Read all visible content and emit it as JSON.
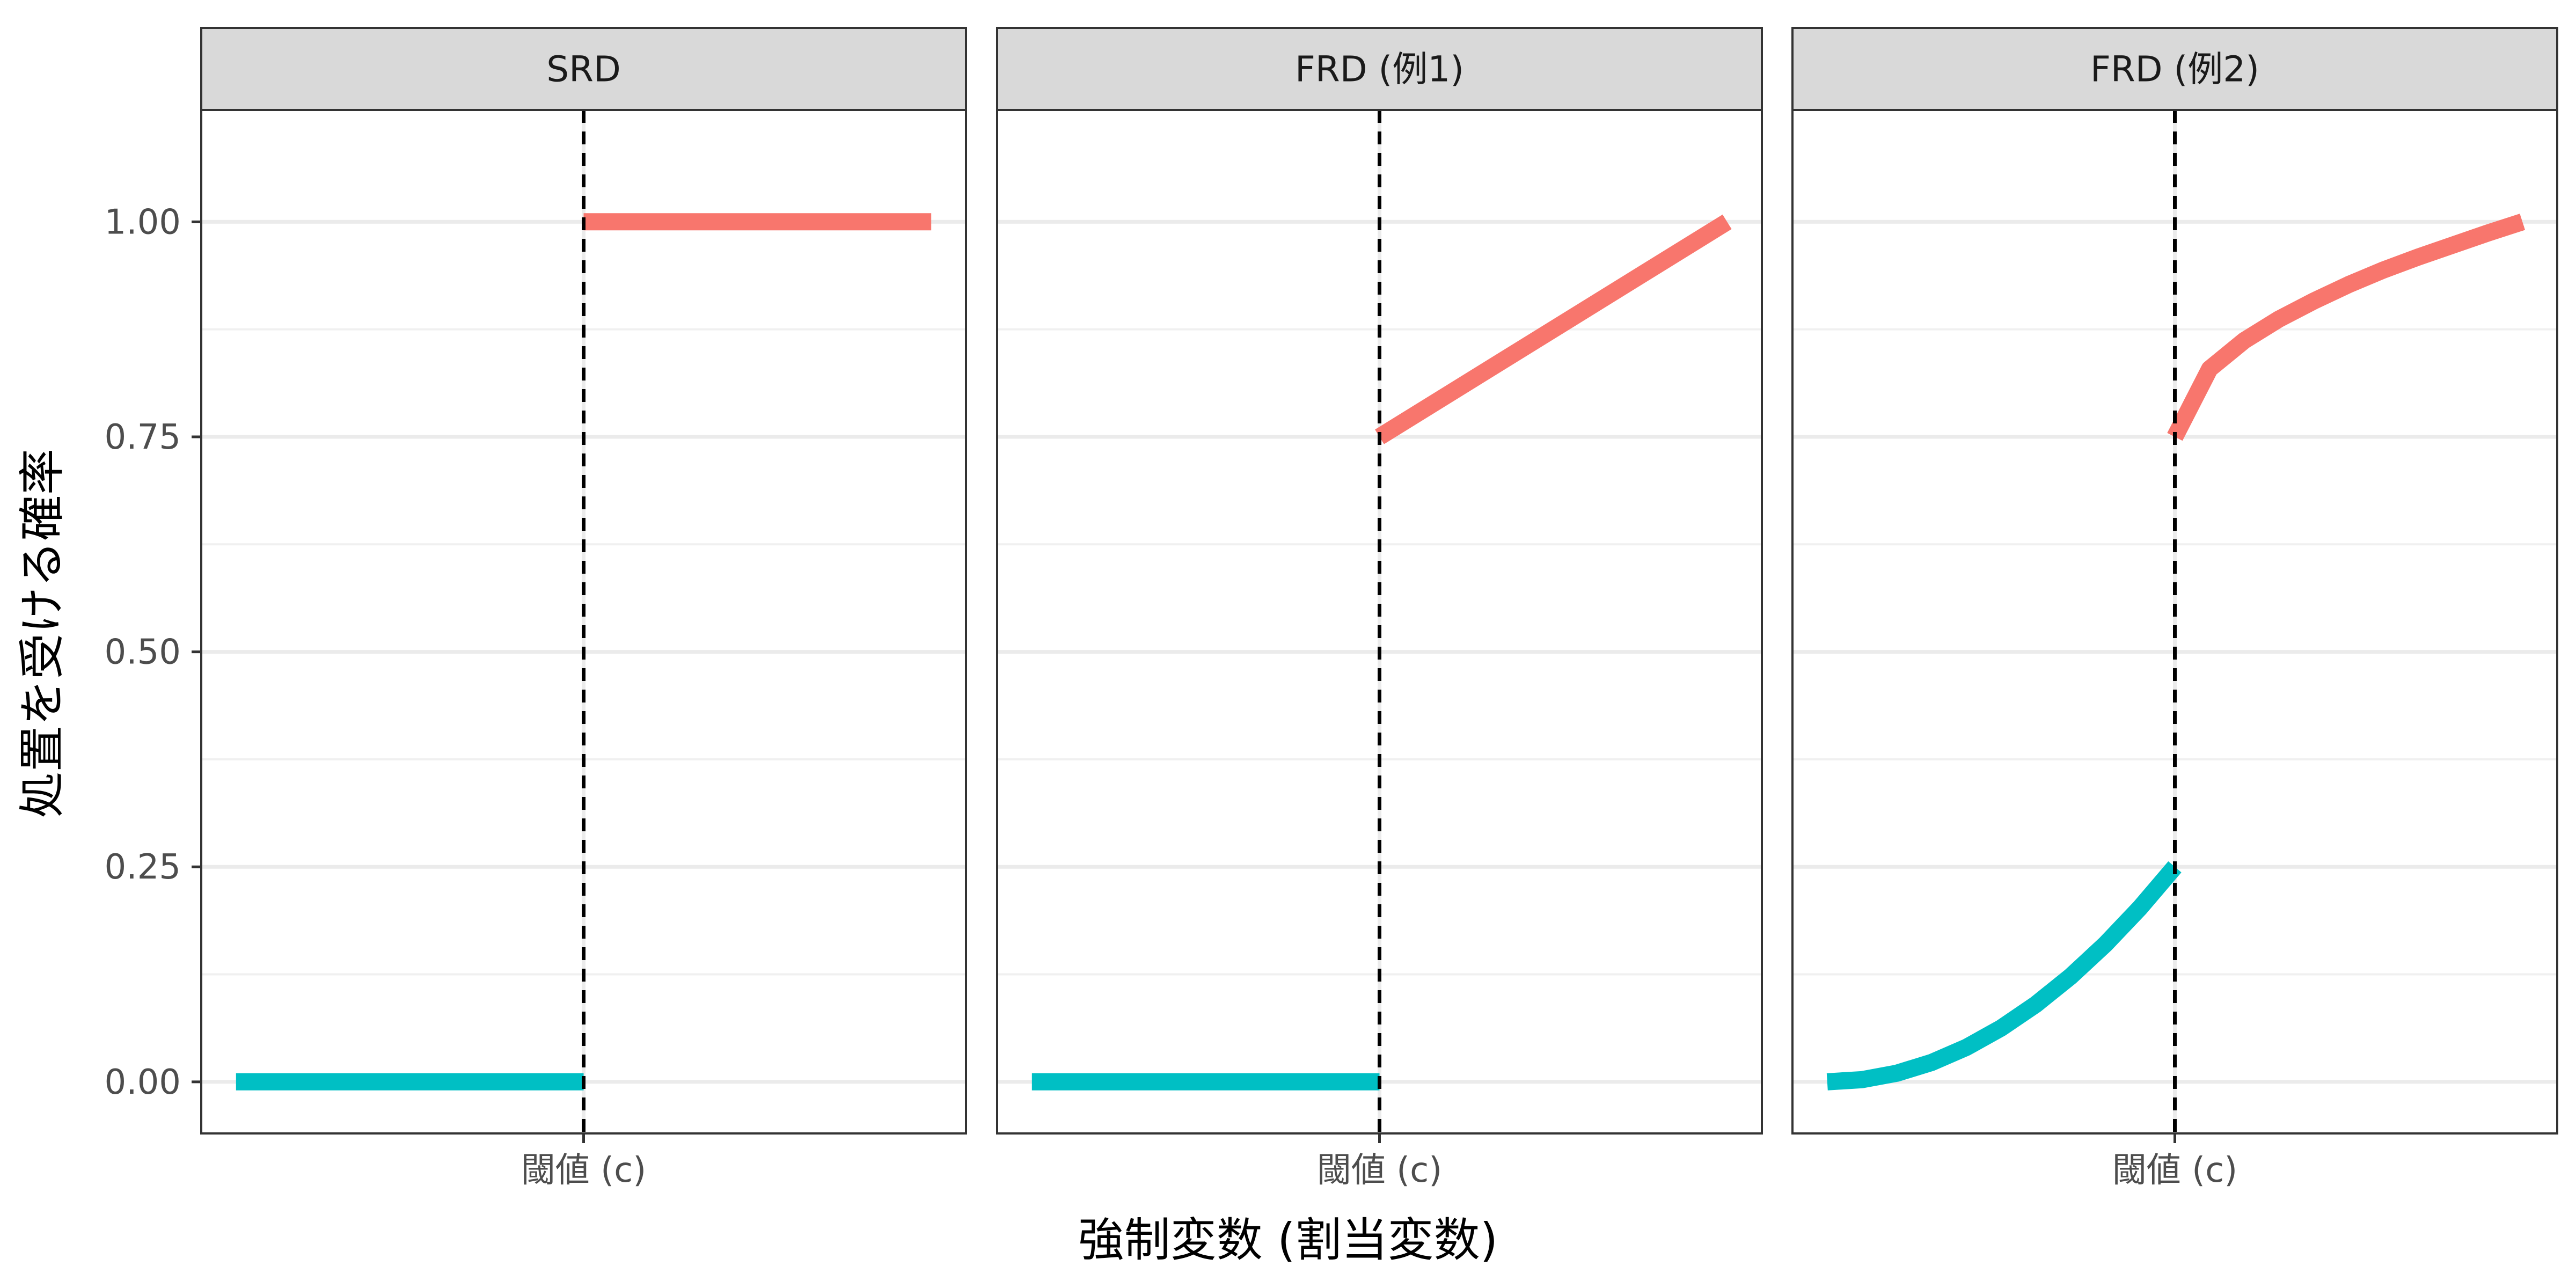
{
  "chart_data": {
    "type": "line",
    "layout": "facets",
    "xlabel": "強制変数 (割当変数)",
    "ylabel": "処置を受ける確率",
    "ylim": [
      -0.06,
      1.13
    ],
    "xlim": [
      -0.05,
      1.05
    ],
    "y_ticks": [
      0,
      0.25,
      0.5,
      0.75,
      1.0
    ],
    "y_tick_labels": [
      "0.00",
      "0.25",
      "0.50",
      "0.75",
      "1.00"
    ],
    "threshold": 0.5,
    "x_tick_label": "閾値 (c)",
    "grid": true,
    "legend": "none",
    "colors": {
      "below": "#00BFC4",
      "above": "#F8766D",
      "threshold_line": "#000000"
    },
    "panels": [
      {
        "title": "SRD",
        "series": [
          {
            "group": "below",
            "x": [
              0,
              0.5
            ],
            "y": [
              0,
              0
            ]
          },
          {
            "group": "above",
            "x": [
              0.5,
              1.0
            ],
            "y": [
              1.0,
              1.0
            ]
          }
        ]
      },
      {
        "title": "FRD (例1)",
        "series": [
          {
            "group": "below",
            "x": [
              0,
              0.5
            ],
            "y": [
              0,
              0
            ]
          },
          {
            "group": "above",
            "x": [
              0.5,
              1.0
            ],
            "y": [
              0.75,
              1.0
            ]
          }
        ]
      },
      {
        "title": "FRD (例2)",
        "series": [
          {
            "group": "below",
            "x": [
              0,
              0.05,
              0.1,
              0.15,
              0.2,
              0.25,
              0.3,
              0.35,
              0.4,
              0.45,
              0.5
            ],
            "y": [
              0,
              0.0025,
              0.01,
              0.0225,
              0.04,
              0.0625,
              0.09,
              0.1225,
              0.16,
              0.2025,
              0.25
            ]
          },
          {
            "group": "above",
            "x": [
              0.5,
              0.55,
              0.6,
              0.65,
              0.7,
              0.75,
              0.8,
              0.85,
              0.9,
              0.95,
              1.0
            ],
            "y": [
              0.75,
              0.829,
              0.862,
              0.887,
              0.908,
              0.927,
              0.944,
              0.959,
              0.973,
              0.987,
              1.0
            ]
          }
        ]
      }
    ]
  }
}
